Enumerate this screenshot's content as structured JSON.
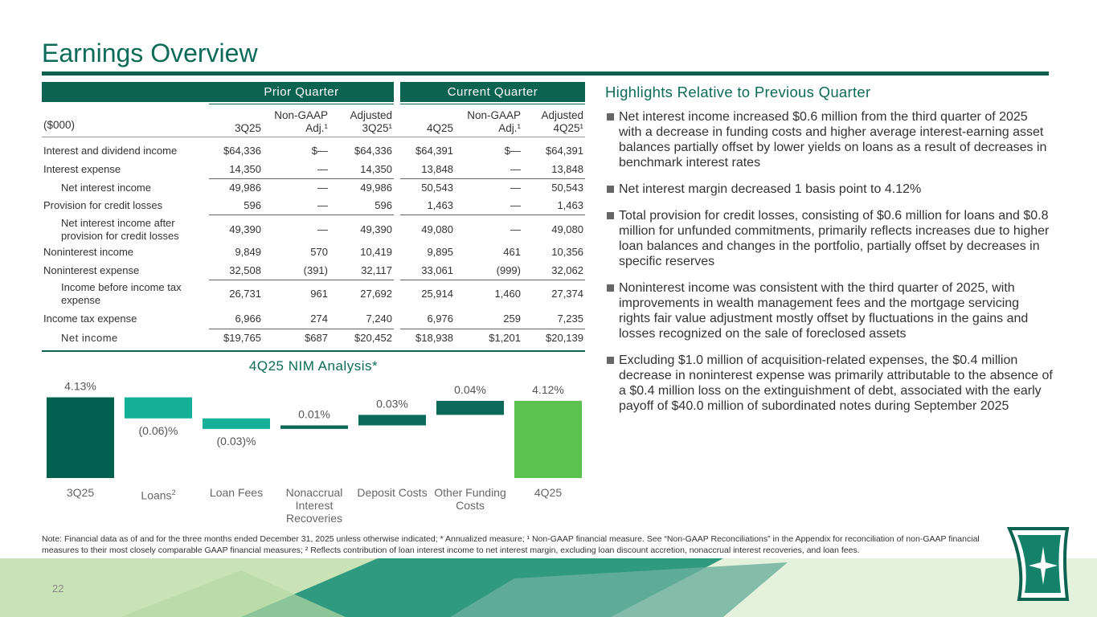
{
  "header": {
    "title": "Earnings Overview"
  },
  "table": {
    "group_headers": [
      "Prior Quarter",
      "Current Quarter"
    ],
    "columns": [
      "($000)",
      "3Q25",
      "Non-GAAP Adj.¹",
      "Adjusted 3Q25¹",
      "4Q25",
      "Non-GAAP Adj.¹",
      "Adjusted 4Q25¹"
    ],
    "rows": [
      [
        "Interest and dividend income",
        "$64,336",
        "$—",
        "$64,336",
        "$64,391",
        "$—",
        "$64,391"
      ],
      [
        "Interest expense",
        "14,350",
        "—",
        "14,350",
        "13,848",
        "—",
        "13,848"
      ],
      [
        "Net interest income",
        "49,986",
        "—",
        "49,986",
        "50,543",
        "—",
        "50,543"
      ],
      [
        "Provision for credit losses",
        "596",
        "—",
        "596",
        "1,463",
        "—",
        "1,463"
      ],
      [
        "Net interest income after provision for credit losses",
        "49,390",
        "—",
        "49,390",
        "49,080",
        "—",
        "49,080"
      ],
      [
        "Noninterest income",
        "9,849",
        "570",
        "10,419",
        "9,895",
        "461",
        "10,356"
      ],
      [
        "Noninterest expense",
        "32,508",
        "(391)",
        "32,117",
        "33,061",
        "(999)",
        "32,062"
      ],
      [
        "Income before income tax expense",
        "26,731",
        "961",
        "27,692",
        "25,914",
        "1,460",
        "27,374"
      ],
      [
        "Income tax expense",
        "6,966",
        "274",
        "7,240",
        "6,976",
        "259",
        "7,235"
      ],
      [
        "Net income",
        "$19,765",
        "$687",
        "$20,452",
        "$18,938",
        "$1,201",
        "$20,139"
      ]
    ]
  },
  "nim_chart": {
    "type": "waterfall",
    "title": "4Q25 NIM Analysis*",
    "categories": [
      "3Q25",
      "Loans",
      "Loan Fees",
      "Nonaccrual Interest Recoveries",
      "Deposit Costs",
      "Other Funding Costs",
      "4Q25"
    ],
    "loans_note": "2",
    "values": [
      4.13,
      -0.06,
      -0.03,
      0.01,
      0.03,
      0.04,
      4.12
    ],
    "value_labels": [
      "4.13%",
      "(0.06)%",
      "(0.03)%",
      "0.01%",
      "0.03%",
      "0.04%",
      "4.12%"
    ],
    "colors": [
      "#01604f",
      "#14b198",
      "#14b198",
      "#0c6a5b",
      "#0c6a5b",
      "#0c6a5b",
      "#5bc14f"
    ],
    "ylim": [
      3.9,
      4.2
    ]
  },
  "highlights": {
    "title": "Highlights Relative to Previous Quarter",
    "items": [
      "Net interest income increased $0.6 million from the third quarter of 2025 with a decrease in funding costs and higher average interest-earning asset balances partially offset by lower yields on loans as a result of decreases in benchmark interest rates",
      "Net interest margin decreased 1 basis point to 4.12%",
      "Total provision for credit losses, consisting of $0.6 million for loans and $0.8 million for unfunded commitments, primarily reflects increases due to higher loan balances and changes in the portfolio, partially offset by decreases in specific reserves",
      "Noninterest income was consistent with the third quarter of 2025, with improvements in wealth management fees and the mortgage servicing rights fair value adjustment mostly offset by fluctuations in the gains and losses recognized on the sale of foreclosed assets",
      "Excluding $1.0 million of acquisition-related expenses, the $0.4 million decrease in noninterest expense was primarily attributable to the absence of a $0.4 million loss on the extinguishment of debt, associated with the early payoff of $40.0 million of subordinated notes during September 2025"
    ]
  },
  "note": "Note: Financial data as of and for the three months ended December 31, 2025 unless otherwise indicated; * Annualized measure; ¹ Non-GAAP financial measure. See “Non-GAAP Reconciliations” in the Appendix for reconciliation of non-GAAP financial measures to their most closely comparable GAAP financial measures; ² Reflects contribution of loan interest income to net interest margin, excluding loan discount accretion, nonaccrual interest recoveries, and loan fees.",
  "page_number": "22"
}
